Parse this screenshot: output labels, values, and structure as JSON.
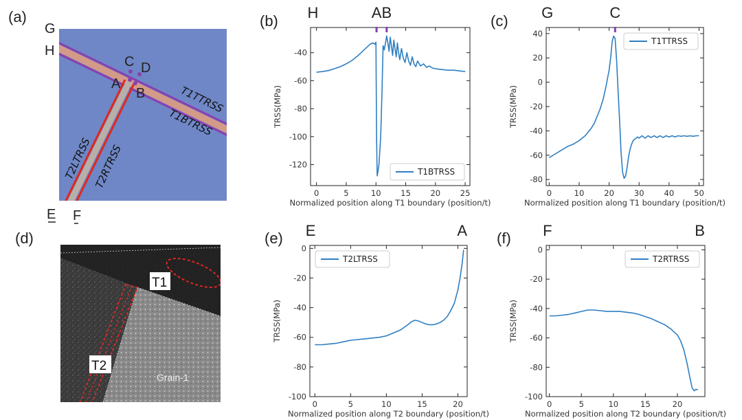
{
  "panels": {
    "a": "(a)",
    "b": "(b)",
    "c": "(c)",
    "d": "(d)",
    "e": "(e)",
    "f": "(f)"
  },
  "schematic": {
    "points": {
      "G": "G",
      "H": "H",
      "C": "C",
      "D": "D",
      "A": "A",
      "B": "B",
      "E": "E",
      "F": "F"
    },
    "boundary_labels": {
      "t1t": "T1TTRSS",
      "t1b": "T1BTRSS",
      "t2l": "T2LTRSS",
      "t2r": "T2RTRSS"
    },
    "colors": {
      "background": "#6f87c6",
      "band": "#d49a88",
      "purple": "#8a3fb0",
      "red": "#e0271f",
      "grey": "#b8b0a8"
    }
  },
  "micrograph": {
    "labels": {
      "t1": "T1",
      "t2": "T2",
      "grain": "Grain-1"
    }
  },
  "chart_data": [
    {
      "id": "b",
      "type": "line",
      "ylabel": "TRSS(MPa)",
      "xlabel": "Normalized position along T1 boundary (position/t)",
      "xlim": [
        -1,
        25.8
      ],
      "ylim": [
        -135,
        -22
      ],
      "xticks": [
        0,
        5,
        10,
        15,
        20,
        25
      ],
      "yticks": [
        -120,
        -100,
        -80,
        -60,
        -40
      ],
      "legend": {
        "label": "T1BTRSS",
        "loc": "lower-right"
      },
      "top_labels": [
        {
          "text": "H",
          "x": -0.6
        },
        {
          "text": "A",
          "x": 10.1
        },
        {
          "text": "B",
          "x": 11.8
        }
      ],
      "top_marks": [
        10.1,
        11.8
      ],
      "color": "#2e7ec2",
      "series": [
        {
          "name": "T1BTRSS",
          "x": [
            0,
            1,
            2,
            3,
            4,
            5,
            6,
            7,
            8,
            9,
            9.5,
            9.8,
            10,
            10.1,
            10.2,
            10.3,
            10.5,
            10.8,
            11,
            11.2,
            11.4,
            11.6,
            11.8,
            12,
            12.2,
            12.4,
            12.6,
            12.8,
            13,
            13.2,
            13.4,
            13.6,
            13.8,
            14,
            14.3,
            14.6,
            14.9,
            15.2,
            15.5,
            15.8,
            16.1,
            16.4,
            16.7,
            17,
            17.5,
            18,
            18.5,
            19,
            19.5,
            20,
            21,
            22,
            23,
            24,
            25
          ],
          "y": [
            -54,
            -53.5,
            -52.8,
            -51.5,
            -50,
            -48,
            -45.5,
            -42,
            -38,
            -34,
            -33,
            -34,
            -32.5,
            -100,
            -128,
            -126,
            -120,
            -100,
            -70,
            -35,
            -38,
            -33,
            -28,
            -33,
            -39,
            -29,
            -35,
            -42,
            -31,
            -37,
            -43,
            -33,
            -40,
            -45,
            -37,
            -44,
            -47,
            -40,
            -46,
            -49,
            -43,
            -48,
            -50,
            -46,
            -49.5,
            -48,
            -50.5,
            -49.5,
            -51,
            -51.5,
            -52,
            -52.5,
            -52.5,
            -53,
            -53.5
          ]
        }
      ]
    },
    {
      "id": "c",
      "type": "line",
      "ylabel": "TRSS(MPa)",
      "xlabel": "Normalized position along T1 boundary (position/t)",
      "xlim": [
        -1,
        51.5
      ],
      "ylim": [
        -85,
        45
      ],
      "xticks": [
        0,
        10,
        20,
        30,
        40,
        50
      ],
      "yticks": [
        -80,
        -60,
        -40,
        -20,
        0,
        20,
        40
      ],
      "legend": {
        "label": "T1TTRSS",
        "loc": "upper-right"
      },
      "top_labels": [
        {
          "text": "G",
          "x": -0.6
        },
        {
          "text": "C",
          "x": 22
        }
      ],
      "top_marks": [
        22
      ],
      "color": "#2e7ec2",
      "series": [
        {
          "name": "T1TTRSS",
          "x": [
            0,
            2,
            4,
            6,
            8,
            10,
            12,
            14,
            15,
            16,
            17,
            18,
            19,
            20,
            20.5,
            21,
            21.5,
            22,
            22.5,
            23,
            23.5,
            24,
            24.5,
            25,
            25.5,
            26,
            26.5,
            27,
            27.5,
            28,
            28.5,
            29,
            29.5,
            30,
            31,
            32,
            33,
            34,
            35,
            36,
            37,
            38,
            39,
            40,
            41,
            42,
            43,
            44,
            45,
            46,
            47,
            48,
            49,
            50
          ],
          "y": [
            -62,
            -59,
            -56,
            -53,
            -51,
            -48,
            -44,
            -38,
            -34,
            -28,
            -22,
            -14,
            -3,
            10,
            20,
            33,
            38,
            36,
            18,
            -8,
            -32,
            -58,
            -74,
            -79,
            -77,
            -70,
            -61,
            -55,
            -51,
            -48,
            -47,
            -46,
            -45,
            -46,
            -44,
            -46,
            -44,
            -45.5,
            -44,
            -45.5,
            -44,
            -45.5,
            -44,
            -45,
            -44,
            -45,
            -44,
            -44.5,
            -44,
            -44.5,
            -44,
            -44.5,
            -44,
            -44
          ]
        }
      ]
    },
    {
      "id": "e",
      "type": "line",
      "ylabel": "TRSS(MPa)",
      "xlabel": "Normalized position along T2 boundary (position/t)",
      "xlim": [
        -0.7,
        21.3
      ],
      "ylim": [
        -100,
        2
      ],
      "xticks": [
        0,
        5,
        10,
        15,
        20
      ],
      "yticks": [
        -100,
        -80,
        -60,
        -40,
        -20,
        0
      ],
      "legend": {
        "label": "T2LTRSS",
        "loc": "upper-left"
      },
      "top_labels": [
        {
          "text": "E",
          "x": -0.6
        },
        {
          "text": "A",
          "x": 20.6
        }
      ],
      "top_marks": [],
      "color": "#2e7ec2",
      "series": [
        {
          "name": "T2LTRSS",
          "x": [
            0,
            1,
            2,
            3,
            4,
            5,
            6,
            7,
            8,
            9,
            10,
            11,
            12,
            13,
            13.5,
            14,
            14.5,
            15,
            15.5,
            16,
            16.5,
            17,
            17.5,
            18,
            18.5,
            19,
            19.5,
            20,
            20.3,
            20.6,
            20.8
          ],
          "y": [
            -65,
            -65,
            -64.5,
            -64,
            -63,
            -62,
            -61.5,
            -61,
            -60.5,
            -60,
            -59,
            -57,
            -55,
            -51.5,
            -49.5,
            -48.5,
            -49,
            -50,
            -51,
            -51.5,
            -51.5,
            -51,
            -50,
            -48.5,
            -46,
            -42,
            -37,
            -28,
            -20,
            -10,
            -1
          ]
        }
      ]
    },
    {
      "id": "f",
      "type": "line",
      "ylabel": "TRSS(MPa)",
      "xlabel": "Normalized position along T2 boundary (position/t)",
      "xlim": [
        -0.5,
        24.3
      ],
      "ylim": [
        -100,
        3
      ],
      "xticks": [
        0,
        5,
        10,
        15,
        20
      ],
      "yticks": [
        -100,
        -80,
        -60,
        -40,
        -20,
        0
      ],
      "legend": {
        "label": "T2RTRSS",
        "loc": "upper-right"
      },
      "top_labels": [
        {
          "text": "F",
          "x": -0.3
        },
        {
          "text": "B",
          "x": 23.5
        }
      ],
      "top_marks": [],
      "color": "#2e7ec2",
      "series": [
        {
          "name": "T2RTRSS",
          "x": [
            0,
            1,
            2,
            3,
            4,
            5,
            6,
            7,
            8,
            9,
            10,
            11,
            12,
            13,
            14,
            15,
            16,
            17,
            18,
            19,
            20,
            20.5,
            21,
            21.5,
            22,
            22.3,
            22.6,
            22.9,
            23.2
          ],
          "y": [
            -45,
            -45,
            -44.5,
            -44,
            -43,
            -42,
            -41,
            -41,
            -41.5,
            -42,
            -42,
            -42,
            -42.5,
            -43,
            -44,
            -45.5,
            -47,
            -49,
            -51,
            -54,
            -58,
            -62,
            -68,
            -77,
            -88,
            -94,
            -96,
            -95,
            -95.5
          ]
        }
      ]
    }
  ]
}
